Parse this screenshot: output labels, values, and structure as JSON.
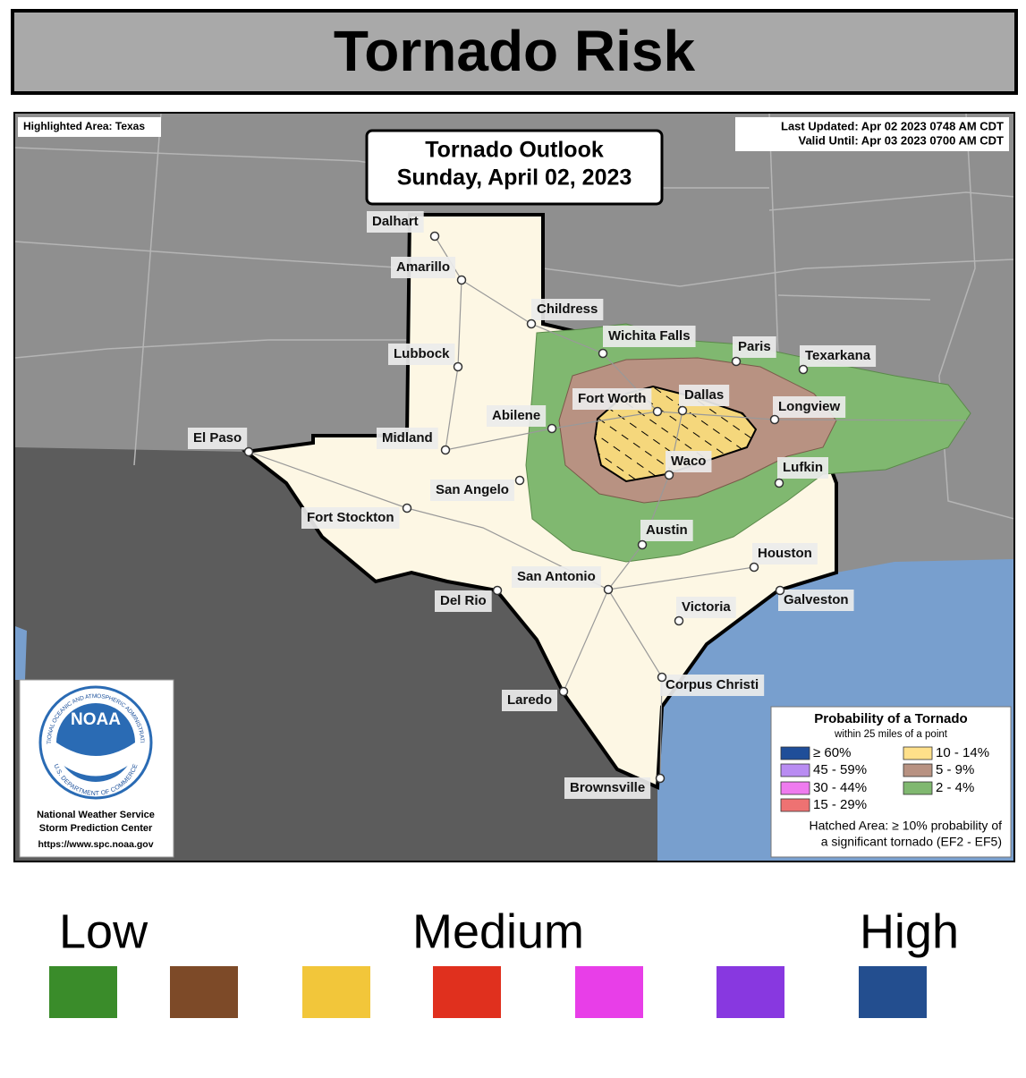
{
  "header": {
    "title": "Tornado Risk"
  },
  "map": {
    "highlighted_area": "Highlighted Area: Texas",
    "last_updated": "Last Updated: Apr 02 2023 0748 AM CDT",
    "valid_until": "Valid Until: Apr 03 2023 0700 AM CDT",
    "outlook_title": "Tornado Outlook",
    "outlook_date": "Sunday, April 02, 2023",
    "cities": [
      "Dalhart",
      "Amarillo",
      "Childress",
      "Lubbock",
      "Wichita Falls",
      "Paris",
      "Texarkana",
      "Fort Worth",
      "Dallas",
      "Longview",
      "Abilene",
      "Midland",
      "El Paso",
      "Waco",
      "Lufkin",
      "San Angelo",
      "Fort Stockton",
      "Austin",
      "Houston",
      "San Antonio",
      "Galveston",
      "Del Rio",
      "Victoria",
      "Corpus Christi",
      "Laredo",
      "Brownsville"
    ],
    "risk_colors": {
      "low": "#80b870",
      "medium": "#b89282",
      "high": "#f5d77c"
    }
  },
  "noaa": {
    "logo": "NOAA",
    "ring_top": "NATIONAL OCEANIC AND ATMOSPHERIC ADMINISTRATION",
    "ring_bottom": "U.S. DEPARTMENT OF COMMERCE",
    "line1": "National Weather Service",
    "line2": "Storm Prediction Center",
    "url": "https://www.spc.noaa.gov"
  },
  "legend": {
    "title": "Probability of a Tornado",
    "subtitle": "within 25 miles of a point",
    "items": [
      {
        "label": "≥ 60%",
        "color": "#1f4e99"
      },
      {
        "label": "45 - 59%",
        "color": "#b98cf2"
      },
      {
        "label": "30 - 44%",
        "color": "#ef7bef"
      },
      {
        "label": "15 - 29%",
        "color": "#ee7272"
      },
      {
        "label": "10 - 14%",
        "color": "#ffe08a"
      },
      {
        "label": "5 - 9%",
        "color": "#b89282"
      },
      {
        "label": "2 - 4%",
        "color": "#80b870"
      }
    ],
    "hatch_line1": "Hatched Area: ≥ 10% probability of",
    "hatch_line2": "a significant tornado (EF2 - EF5)"
  },
  "scale": {
    "labels": [
      "Low",
      "Medium",
      "High"
    ],
    "colors": [
      "#3a8c2a",
      "#7d4a28",
      "#f2c63a",
      "#e0301e",
      "#e83ee8",
      "#8838e0",
      "#234e8f"
    ]
  }
}
